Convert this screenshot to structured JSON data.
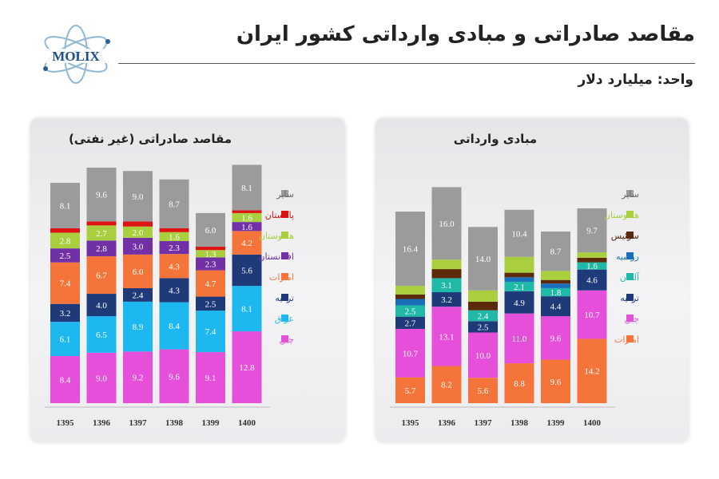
{
  "page": {
    "title": "مقاصد صادراتی و مبادی وارداتی کشور ایران",
    "unit": "واحد: میلیارد دلار",
    "logo_text": "MOLIX"
  },
  "chart_data": [
    {
      "type": "bar",
      "stacked": true,
      "title": "مقاصد صادراتی (غیر نفتی)",
      "categories": [
        "1395",
        "1396",
        "1397",
        "1398",
        "1399",
        "1400"
      ],
      "ylim": [
        0,
        42
      ],
      "legend_position": "right",
      "series": [
        {
          "name": "چین",
          "color": "#e64fd9",
          "values": [
            8.4,
            9.0,
            9.2,
            9.6,
            9.1,
            12.8
          ]
        },
        {
          "name": "عراق",
          "color": "#1db8ef",
          "values": [
            6.1,
            6.5,
            8.9,
            8.4,
            7.4,
            8.1
          ]
        },
        {
          "name": "ترکیه",
          "color": "#1f3a79",
          "values": [
            3.2,
            4.0,
            2.4,
            4.3,
            2.5,
            5.6
          ]
        },
        {
          "name": "امارات",
          "color": "#f5743a",
          "values": [
            7.4,
            6.7,
            6.0,
            4.3,
            4.7,
            4.2
          ]
        },
        {
          "name": "افغانستان",
          "color": "#7130a6",
          "values": [
            2.5,
            2.8,
            3.0,
            2.3,
            2.3,
            1.6
          ]
        },
        {
          "name": "هندوستان",
          "color": "#a9cf3f",
          "values": [
            2.8,
            2.7,
            2.0,
            1.6,
            1.3,
            1.6
          ]
        },
        {
          "name": "پاکستان",
          "color": "#dd1212",
          "values": [
            0.8,
            0.7,
            0.9,
            0.7,
            0.6,
            0.5
          ]
        },
        {
          "name": "سایر",
          "color": "#9b9b9b",
          "values": [
            8.1,
            9.6,
            9.0,
            8.7,
            6.0,
            8.1
          ]
        }
      ],
      "label_series": [
        "چین",
        "عراق",
        "ترکیه",
        "امارات",
        "افغانستان",
        "هندوستان",
        "سایر"
      ]
    },
    {
      "type": "bar",
      "stacked": true,
      "title": "مبادی وارداتی",
      "categories": [
        "1395",
        "1396",
        "1397",
        "1398",
        "1399",
        "1400"
      ],
      "ylim": [
        0,
        52
      ],
      "legend_position": "right",
      "series": [
        {
          "name": "امارات",
          "color": "#f5743a",
          "values": [
            5.7,
            8.2,
            5.6,
            8.8,
            9.6,
            14.2
          ]
        },
        {
          "name": "چین",
          "color": "#e64fd9",
          "values": [
            10.7,
            13.1,
            10.0,
            11.0,
            9.6,
            10.7
          ]
        },
        {
          "name": "ترکیه",
          "color": "#1f3a79",
          "values": [
            2.7,
            3.2,
            2.5,
            4.9,
            4.4,
            4.6
          ]
        },
        {
          "name": "آلمان",
          "color": "#20b8a6",
          "values": [
            2.5,
            3.1,
            2.4,
            2.1,
            1.8,
            1.6
          ]
        },
        {
          "name": "روسیه",
          "color": "#1a6fbb",
          "values": [
            1.4,
            0.0,
            0.0,
            1.0,
            1.0,
            0.0
          ]
        },
        {
          "name": "سوئیس",
          "color": "#5a2a0a",
          "values": [
            1.0,
            2.0,
            1.9,
            1.0,
            0.8,
            1.0
          ]
        },
        {
          "name": "هندوستان",
          "color": "#a9cf3f",
          "values": [
            1.9,
            2.1,
            2.5,
            3.5,
            2.0,
            1.2
          ]
        },
        {
          "name": "سایر",
          "color": "#9b9b9b",
          "values": [
            16.4,
            16.0,
            14.0,
            10.4,
            8.7,
            9.7
          ]
        }
      ],
      "label_series": [
        "امارات",
        "چین",
        "ترکیه",
        "آلمان",
        "سایر"
      ]
    }
  ]
}
